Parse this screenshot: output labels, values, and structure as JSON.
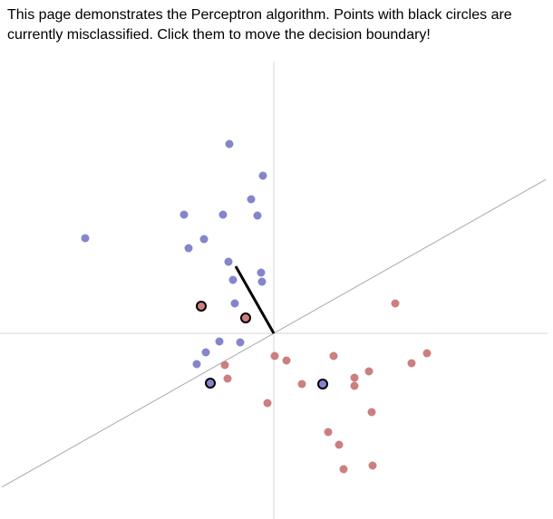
{
  "intro_text": "This page demonstrates the Perceptron algorithm. Points with black circles are currently misclassified. Click them to move the decision boundary!",
  "colors": {
    "class_a": "#8585cc",
    "class_b": "#cc7f7f",
    "axes": "#d6d6d6",
    "boundary": "#a8a8a8",
    "weight": "#000000",
    "misclassified_ring": "#000000"
  },
  "weight_vector": [
    -42,
    74
  ],
  "boundary_slope": 0.566,
  "points": [
    {
      "x": -49,
      "y": 209,
      "cls": "a"
    },
    {
      "x": -12,
      "y": 174,
      "cls": "a"
    },
    {
      "x": -25,
      "y": 148,
      "cls": "a"
    },
    {
      "x": -56,
      "y": 131,
      "cls": "a"
    },
    {
      "x": -99,
      "y": 131,
      "cls": "a"
    },
    {
      "x": -18,
      "y": 130,
      "cls": "a"
    },
    {
      "x": -208,
      "y": 105,
      "cls": "a"
    },
    {
      "x": -77,
      "y": 104,
      "cls": "a"
    },
    {
      "x": -94,
      "y": 94,
      "cls": "a"
    },
    {
      "x": -50,
      "y": 79,
      "cls": "a"
    },
    {
      "x": -14,
      "y": 67,
      "cls": "a"
    },
    {
      "x": -45,
      "y": 59,
      "cls": "a"
    },
    {
      "x": -13,
      "y": 57,
      "cls": "a"
    },
    {
      "x": -43,
      "y": 33,
      "cls": "a"
    },
    {
      "x": -80,
      "y": 30,
      "cls": "b",
      "mis": true
    },
    {
      "x": -31,
      "y": 17,
      "cls": "b",
      "mis": true
    },
    {
      "x": -37,
      "y": -10,
      "cls": "a"
    },
    {
      "x": -60,
      "y": -9,
      "cls": "a"
    },
    {
      "x": -75,
      "y": -21,
      "cls": "a"
    },
    {
      "x": -85,
      "y": -34,
      "cls": "a"
    },
    {
      "x": -54,
      "y": -35,
      "cls": "b"
    },
    {
      "x": -51,
      "y": -50,
      "cls": "b"
    },
    {
      "x": -70,
      "y": -55,
      "cls": "a",
      "mis": true
    },
    {
      "x": 1,
      "y": -25,
      "cls": "b"
    },
    {
      "x": 14,
      "y": -30,
      "cls": "b"
    },
    {
      "x": 66,
      "y": -25,
      "cls": "b"
    },
    {
      "x": 134,
      "y": 33,
      "cls": "b"
    },
    {
      "x": 169,
      "y": -22,
      "cls": "b"
    },
    {
      "x": 152,
      "y": -33,
      "cls": "b"
    },
    {
      "x": 105,
      "y": -42,
      "cls": "b"
    },
    {
      "x": 89,
      "y": -49,
      "cls": "b"
    },
    {
      "x": 31,
      "y": -56,
      "cls": "b"
    },
    {
      "x": 54,
      "y": -56,
      "cls": "a",
      "mis": true
    },
    {
      "x": 89,
      "y": -58,
      "cls": "b"
    },
    {
      "x": -7,
      "y": -77,
      "cls": "b"
    },
    {
      "x": 108,
      "y": -87,
      "cls": "b"
    },
    {
      "x": 60,
      "y": -109,
      "cls": "b"
    },
    {
      "x": 72,
      "y": -123,
      "cls": "b"
    },
    {
      "x": 109,
      "y": -146,
      "cls": "b"
    },
    {
      "x": 77,
      "y": -150,
      "cls": "b"
    }
  ]
}
